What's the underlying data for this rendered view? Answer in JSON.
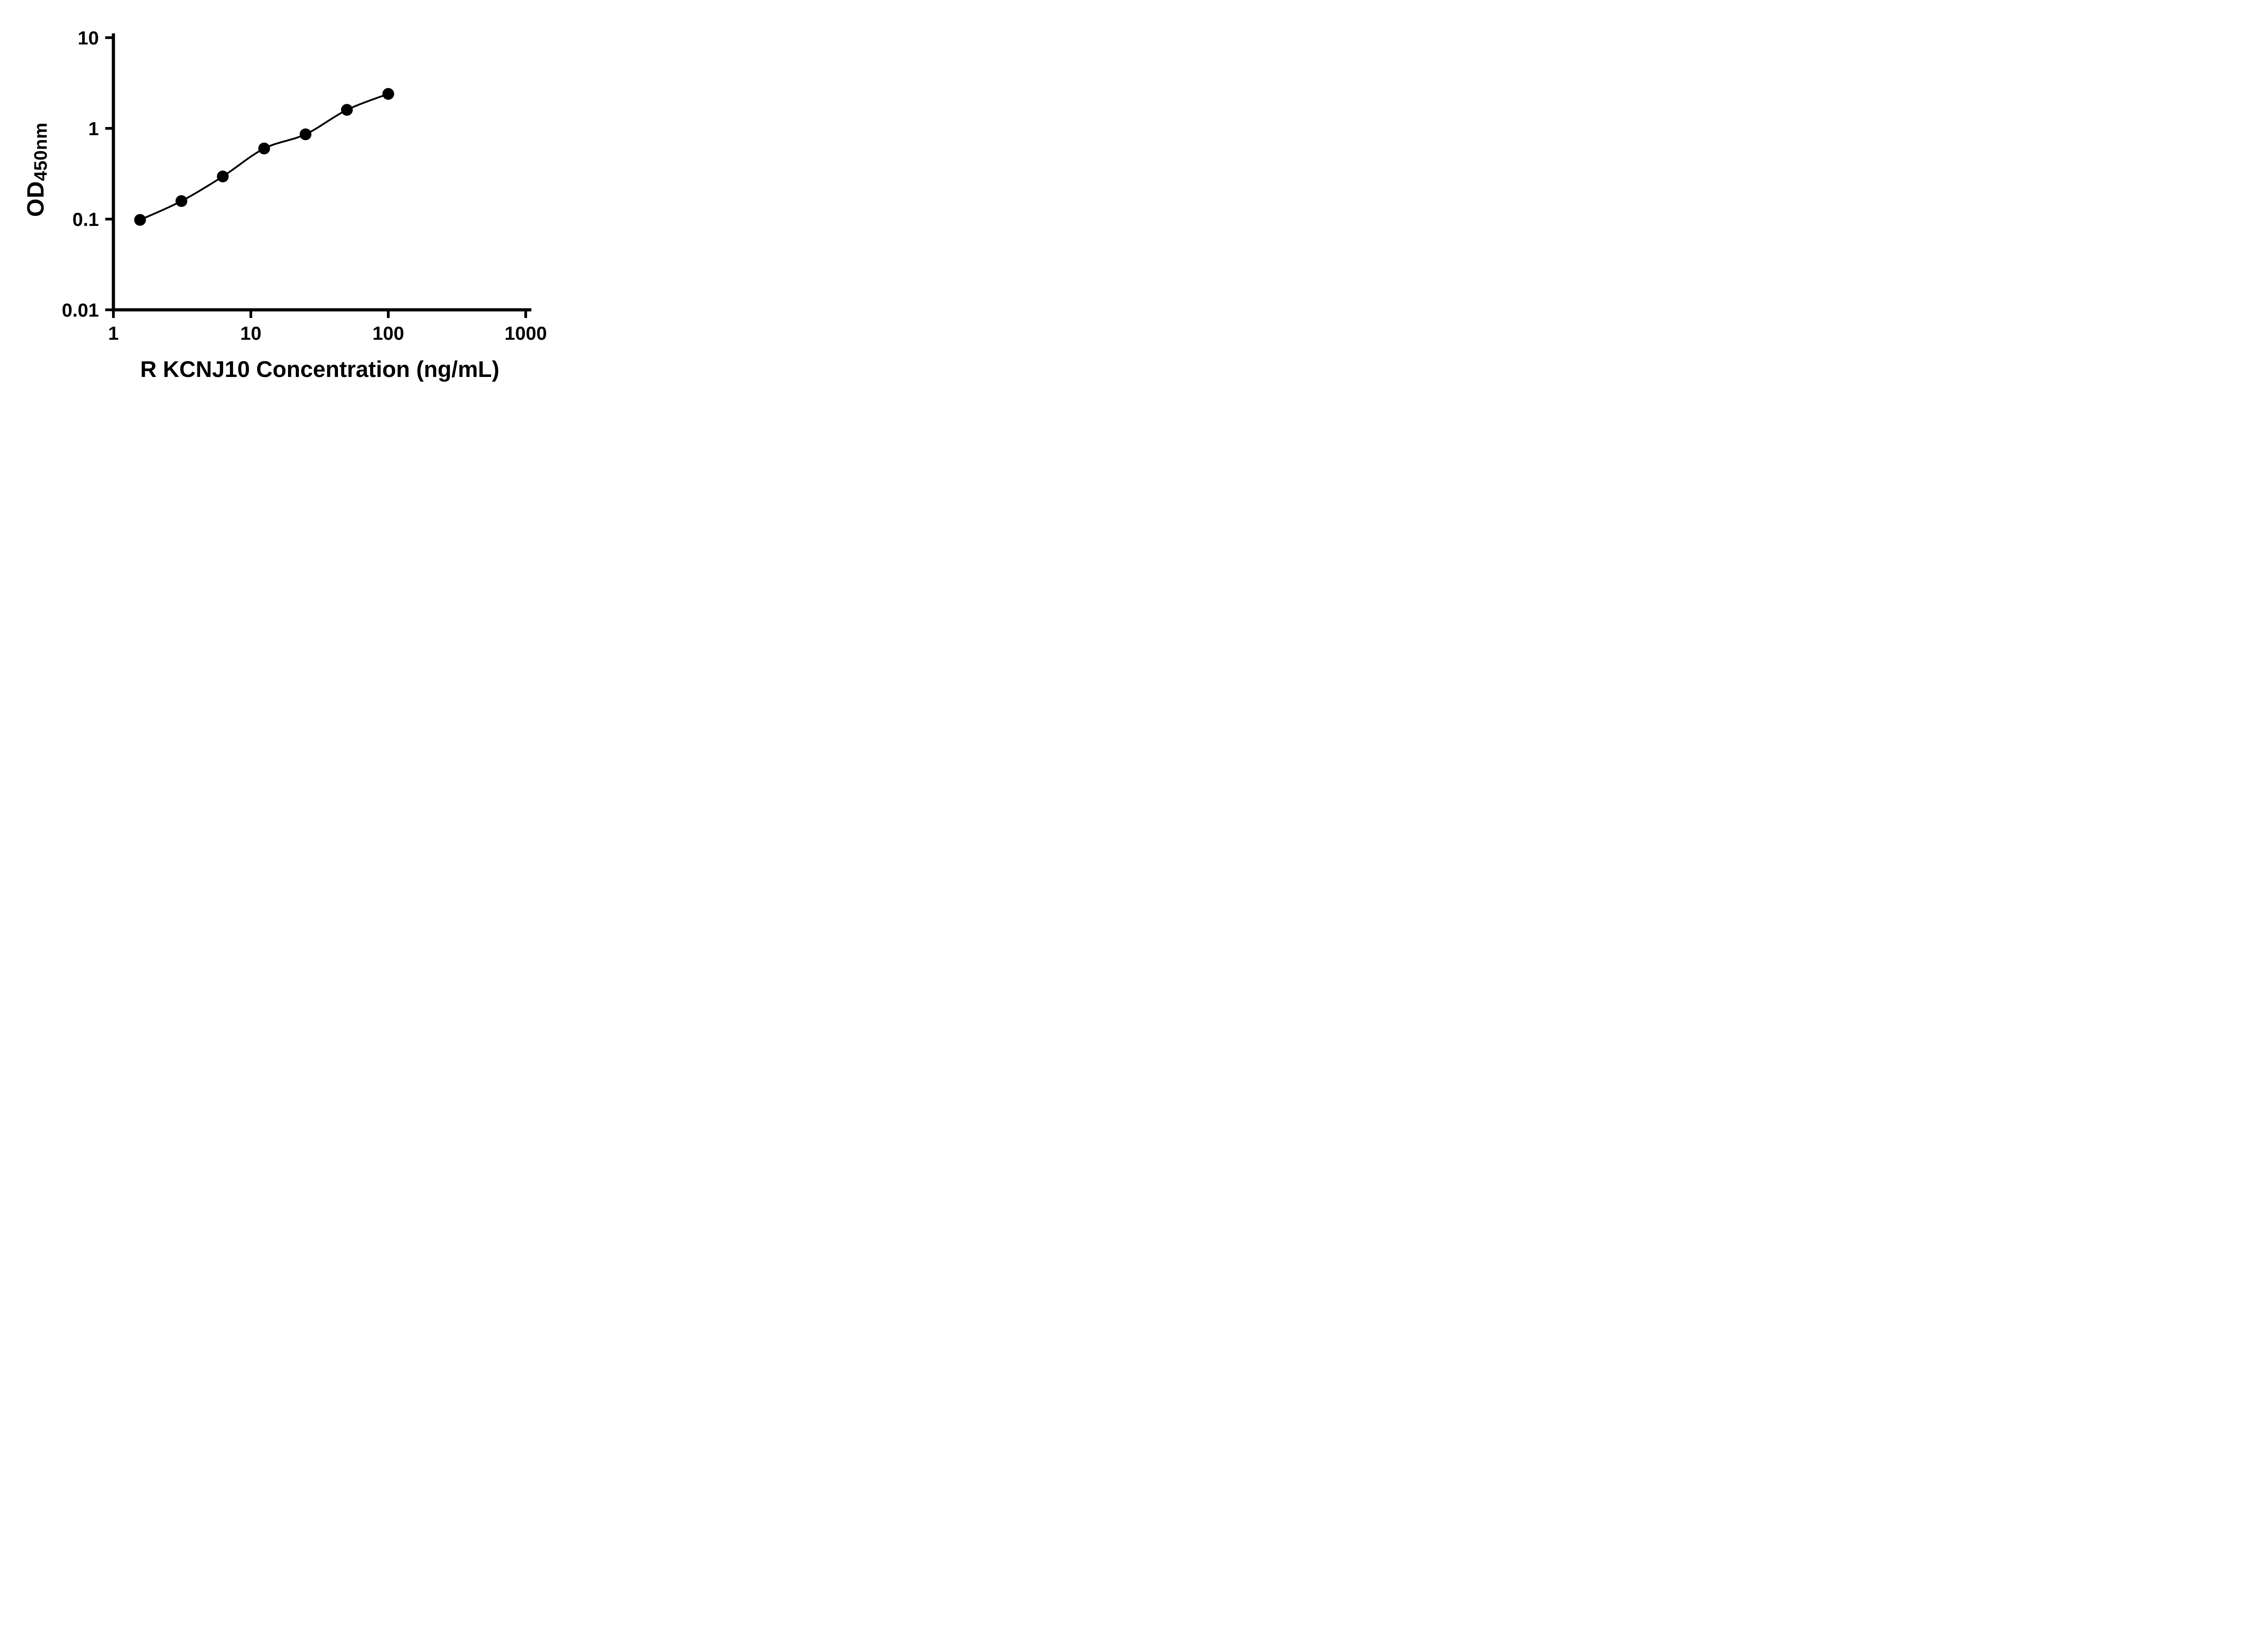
{
  "chart_data": {
    "type": "scatter",
    "title": "",
    "xlabel": "R KCNJ10 Concentration (ng/mL)",
    "ylabel_main": "OD",
    "ylabel_sub": "450nm",
    "x_scale": "log10",
    "y_scale": "log10",
    "xlim": [
      1,
      1000
    ],
    "ylim": [
      0.01,
      10
    ],
    "x_ticks": [
      1,
      10,
      100,
      1000
    ],
    "x_tick_labels": [
      "1",
      "10",
      "100",
      "1000"
    ],
    "y_ticks": [
      0.01,
      0.1,
      1,
      10
    ],
    "y_tick_labels": [
      "0.01",
      "0.1",
      "1",
      "10"
    ],
    "grid": false,
    "legend": false,
    "points": [
      {
        "x": 1.5625,
        "y": 0.098
      },
      {
        "x": 3.125,
        "y": 0.158
      },
      {
        "x": 6.25,
        "y": 0.295
      },
      {
        "x": 12.5,
        "y": 0.6
      },
      {
        "x": 25,
        "y": 0.86
      },
      {
        "x": 50,
        "y": 1.6
      },
      {
        "x": 100,
        "y": 2.4
      }
    ],
    "curve": "smooth-through-points",
    "marker_color": "#000000",
    "line_color": "#000000",
    "axis_color": "#000000",
    "background_color": "#ffffff"
  }
}
